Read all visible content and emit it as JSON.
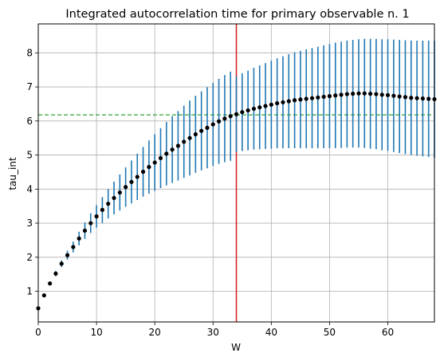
{
  "chart_data": {
    "type": "scatter",
    "title": "Integrated autocorrelation time for primary observable n. 1",
    "xlabel": "W",
    "ylabel": "tau_int",
    "xlim": [
      0,
      68
    ],
    "ylim": [
      0.1,
      8.85
    ],
    "xticks": [
      0,
      10,
      20,
      30,
      40,
      50,
      60
    ],
    "yticks": [
      1,
      2,
      3,
      4,
      5,
      6,
      7,
      8
    ],
    "grid": true,
    "legend": "none",
    "reference_lines": {
      "vertical_x": 34,
      "horizontal_y": 6.18
    },
    "colors": {
      "points": "#000000",
      "errorbars": "#1f77b4",
      "vertical_line": "#d62728",
      "horizontal_line": "#2ca02c",
      "grid": "#b0b0b0"
    },
    "series": [
      {
        "x": [
          0,
          1,
          2,
          3,
          4,
          5,
          6,
          7,
          8,
          9,
          10,
          11,
          12,
          13,
          14,
          15,
          16,
          17,
          18,
          19,
          20,
          21,
          22,
          23,
          24,
          25,
          26,
          27,
          28,
          29,
          30,
          31,
          32,
          33,
          34,
          35,
          36,
          37,
          38,
          39,
          40,
          41,
          42,
          43,
          44,
          45,
          46,
          47,
          48,
          49,
          50,
          51,
          52,
          53,
          54,
          55,
          56,
          57,
          58,
          59,
          60,
          61,
          62,
          63,
          64,
          65,
          66,
          67,
          68
        ],
        "y": [
          0.5,
          0.88,
          1.23,
          1.52,
          1.81,
          2.06,
          2.3,
          2.55,
          2.78,
          3.0,
          3.2,
          3.39,
          3.57,
          3.74,
          3.9,
          4.06,
          4.21,
          4.36,
          4.51,
          4.65,
          4.78,
          4.91,
          5.04,
          5.16,
          5.27,
          5.39,
          5.5,
          5.61,
          5.71,
          5.8,
          5.9,
          5.99,
          6.07,
          6.14,
          6.2,
          6.26,
          6.31,
          6.36,
          6.4,
          6.44,
          6.48,
          6.52,
          6.55,
          6.58,
          6.61,
          6.63,
          6.65,
          6.67,
          6.69,
          6.71,
          6.73,
          6.75,
          6.77,
          6.79,
          6.8,
          6.81,
          6.81,
          6.8,
          6.79,
          6.77,
          6.76,
          6.74,
          6.72,
          6.7,
          6.68,
          6.67,
          6.66,
          6.65,
          6.64
        ],
        "err": [
          0.02,
          0.04,
          0.06,
          0.08,
          0.1,
          0.13,
          0.16,
          0.2,
          0.24,
          0.29,
          0.33,
          0.38,
          0.43,
          0.48,
          0.53,
          0.58,
          0.63,
          0.68,
          0.73,
          0.78,
          0.83,
          0.88,
          0.93,
          0.98,
          1.02,
          1.06,
          1.1,
          1.13,
          1.16,
          1.19,
          1.22,
          1.25,
          1.28,
          1.31,
          1.11,
          1.14,
          1.17,
          1.2,
          1.23,
          1.26,
          1.29,
          1.32,
          1.35,
          1.38,
          1.41,
          1.43,
          1.45,
          1.47,
          1.49,
          1.51,
          1.53,
          1.55,
          1.56,
          1.57,
          1.58,
          1.59,
          1.6,
          1.61,
          1.62,
          1.63,
          1.64,
          1.65,
          1.66,
          1.67,
          1.68,
          1.69,
          1.7,
          1.71,
          1.72
        ]
      }
    ]
  }
}
